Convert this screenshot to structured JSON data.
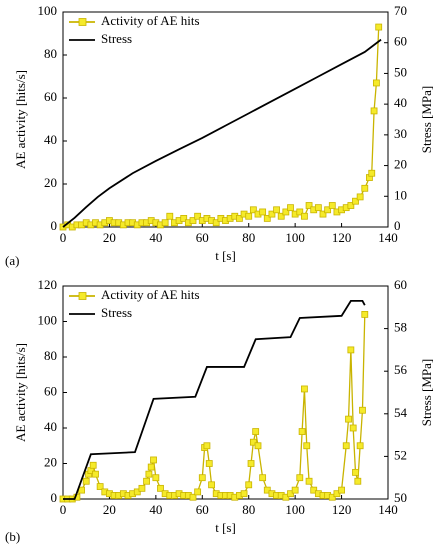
{
  "chart_data": [
    {
      "type": "line",
      "panel_label": "(a)",
      "xlabel": "t [s]",
      "ylabel": "AE activity [hits/s]",
      "y2label": "Stress [MPa]",
      "xlim": [
        0,
        140
      ],
      "xticks": [
        0,
        20,
        40,
        60,
        80,
        100,
        120,
        140
      ],
      "ylim": [
        0,
        100
      ],
      "yticks": [
        0,
        20,
        40,
        60,
        80,
        100
      ],
      "y2lim": [
        0,
        70
      ],
      "y2ticks": [
        0,
        10,
        20,
        30,
        40,
        50,
        60,
        70
      ],
      "legend": "upper left",
      "series": [
        {
          "name": "Activity of AE hits",
          "color": "#c9b400",
          "marker": "square",
          "marker_color": "#f5ea2a",
          "axis": "y",
          "x": [
            0,
            2,
            4,
            6,
            8,
            10,
            12,
            14,
            16,
            18,
            20,
            22,
            24,
            26,
            28,
            30,
            32,
            34,
            36,
            38,
            40,
            42,
            44,
            46,
            48,
            50,
            52,
            54,
            56,
            58,
            60,
            62,
            64,
            66,
            68,
            70,
            72,
            74,
            76,
            78,
            80,
            82,
            84,
            86,
            88,
            90,
            92,
            94,
            96,
            98,
            100,
            102,
            104,
            106,
            108,
            110,
            112,
            114,
            116,
            118,
            120,
            122,
            124,
            126,
            128,
            130,
            132,
            133,
            134,
            135,
            136
          ],
          "values": [
            0,
            1,
            0,
            1,
            1,
            2,
            1,
            2,
            1,
            2,
            3,
            2,
            2,
            1,
            2,
            2,
            1,
            2,
            2,
            3,
            2,
            1,
            2,
            5,
            2,
            3,
            4,
            2,
            3,
            5,
            3,
            4,
            3,
            2,
            4,
            3,
            4,
            5,
            4,
            6,
            5,
            8,
            6,
            7,
            4,
            6,
            8,
            5,
            7,
            9,
            6,
            7,
            5,
            10,
            8,
            9,
            6,
            8,
            10,
            7,
            8,
            9,
            10,
            12,
            14,
            18,
            23,
            25,
            54,
            67,
            93
          ]
        },
        {
          "name": "Stress",
          "color": "#000000",
          "marker": "none",
          "axis": "y2",
          "x": [
            0,
            5,
            10,
            15,
            20,
            30,
            40,
            50,
            60,
            70,
            80,
            90,
            100,
            110,
            120,
            130,
            137
          ],
          "values": [
            0,
            3,
            6.5,
            9.8,
            12.6,
            17.5,
            21.5,
            25.3,
            29,
            33,
            37,
            41,
            45,
            49,
            53,
            57,
            61
          ]
        }
      ]
    },
    {
      "type": "line",
      "panel_label": "(b)",
      "xlabel": "t [s]",
      "ylabel": "AE activity [hits/s]",
      "y2label": "Stress [MPa]",
      "xlim": [
        0,
        140
      ],
      "xticks": [
        0,
        20,
        40,
        60,
        80,
        100,
        120,
        140
      ],
      "ylim": [
        0,
        120
      ],
      "yticks": [
        0,
        20,
        40,
        60,
        80,
        100,
        120
      ],
      "y2lim": [
        50,
        60
      ],
      "y2ticks": [
        50,
        52,
        54,
        56,
        58,
        60
      ],
      "legend": "upper left",
      "series": [
        {
          "name": "Activity of AE hits",
          "color": "#c9b400",
          "marker": "square",
          "marker_color": "#f5ea2a",
          "axis": "y",
          "x": [
            0,
            2,
            4,
            6,
            8,
            10,
            11,
            12,
            13,
            14,
            16,
            18,
            20,
            22,
            24,
            26,
            28,
            30,
            32,
            34,
            36,
            37,
            38,
            39,
            40,
            42,
            44,
            46,
            48,
            50,
            52,
            54,
            56,
            58,
            60,
            61,
            62,
            63,
            64,
            66,
            68,
            70,
            72,
            74,
            76,
            78,
            80,
            81,
            82,
            83,
            84,
            86,
            88,
            90,
            92,
            94,
            96,
            98,
            100,
            102,
            103,
            104,
            105,
            106,
            108,
            110,
            112,
            114,
            116,
            118,
            120,
            122,
            123,
            124,
            125,
            126,
            127,
            128,
            129,
            130
          ],
          "values": [
            0,
            0,
            0,
            1,
            5,
            10,
            14,
            16,
            19,
            14,
            7,
            4,
            3,
            2,
            2,
            3,
            2,
            3,
            4,
            6,
            10,
            14,
            18,
            22,
            12,
            6,
            3,
            2,
            2,
            3,
            2,
            2,
            1,
            4,
            12,
            29,
            30,
            20,
            8,
            3,
            2,
            2,
            2,
            1,
            2,
            3,
            8,
            20,
            32,
            38,
            30,
            12,
            5,
            3,
            2,
            2,
            1,
            3,
            5,
            12,
            38,
            62,
            30,
            10,
            5,
            3,
            2,
            2,
            1,
            3,
            5,
            30,
            45,
            84,
            40,
            15,
            10,
            30,
            50,
            104
          ]
        },
        {
          "name": "Stress",
          "color": "#000000",
          "marker": "none",
          "axis": "y2",
          "x": [
            0,
            5,
            12,
            31,
            39,
            57,
            62,
            78,
            83,
            98,
            102,
            120,
            124,
            129,
            130
          ],
          "values": [
            50,
            50,
            52.1,
            52.2,
            54.7,
            54.8,
            56.2,
            56.2,
            57.5,
            57.6,
            58.5,
            58.6,
            59.3,
            59.3,
            59.1
          ]
        }
      ]
    }
  ]
}
